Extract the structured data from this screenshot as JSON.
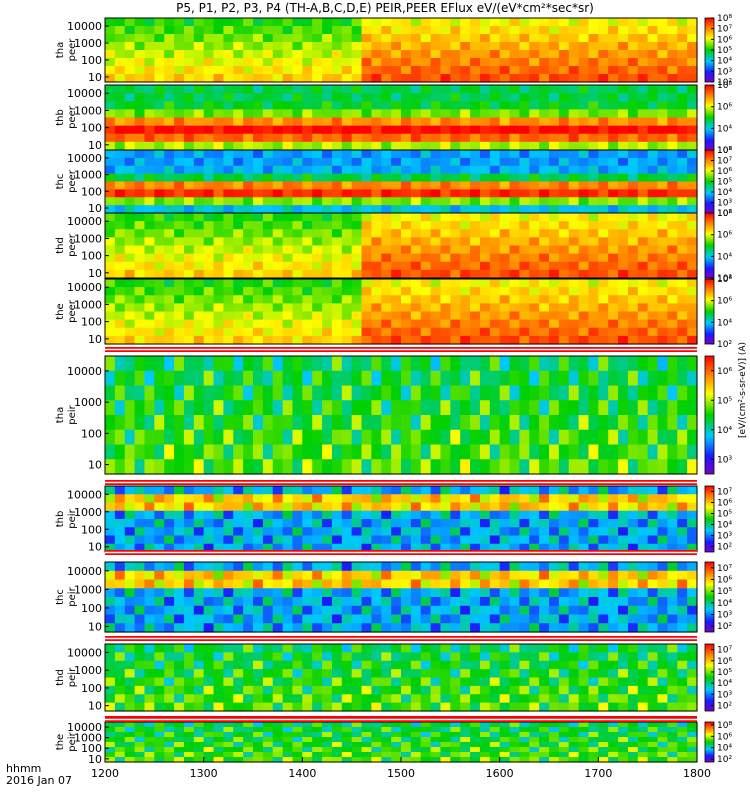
{
  "title": "P5, P1, P2, P3, P4 (TH-A,B,C,D,E) PEIR,PEER EFlux eV/(eV*cm²*sec*sr)",
  "colorbar_title_peer": "[eV/(cm²-s-sr-eV)] (A)",
  "colorbar_title_peir": "[eV/(cm²-s-sr-eV)]",
  "xaxis_label_line1": "hhmm",
  "xaxis_label_line2": "2016 Jan 07",
  "chart_data": {
    "type": "heatmap",
    "title": "P5, P1, P2, P3, P4 (TH-A,B,C,D,E) PEIR,PEER EFlux eV/(eV*cm²*sec*sr)",
    "x_ticks": [
      "1200",
      "1300",
      "1400",
      "1500",
      "1600",
      "1700",
      "1800"
    ],
    "x_range": [
      "1200",
      "1800"
    ],
    "y_scale": "log",
    "y_ticks": [
      "10",
      "100",
      "1000",
      "10000"
    ],
    "y_range": [
      5,
      30000
    ],
    "panels": [
      {
        "probe": "tha",
        "product": "peer",
        "label_line1": "tha",
        "label_line2": "peer",
        "cb_ticks": [
          "10²",
          "10³",
          "10⁴",
          "10⁵",
          "10⁶",
          "10⁷",
          "10⁸"
        ],
        "cb_range": [
          2,
          8
        ],
        "flag_bar": false
      },
      {
        "probe": "thb",
        "product": "peer",
        "label_line1": "thb",
        "label_line2": "peer",
        "cb_ticks": [
          "10²",
          "10⁴",
          "10⁶",
          "10⁸"
        ],
        "cb_range": [
          2,
          8
        ],
        "flag_bar": false
      },
      {
        "probe": "thc",
        "product": "peer",
        "label_line1": "thc",
        "label_line2": "peer",
        "cb_ticks": [
          "10²",
          "10³",
          "10⁴",
          "10⁵",
          "10⁶",
          "10⁷",
          "10⁸"
        ],
        "cb_range": [
          2,
          8
        ],
        "flag_bar": false
      },
      {
        "probe": "thd",
        "product": "peer",
        "label_line1": "thd",
        "label_line2": "peer",
        "cb_ticks": [
          "10²",
          "10⁴",
          "10⁶",
          "10⁸"
        ],
        "cb_range": [
          2,
          8
        ],
        "flag_bar": false
      },
      {
        "probe": "the",
        "product": "peer",
        "label_line1": "the",
        "label_line2": "peer",
        "cb_ticks": [
          "10²",
          "10⁴",
          "10⁶",
          "10⁸"
        ],
        "cb_range": [
          2,
          8
        ],
        "flag_bar": true
      },
      {
        "probe": "tha",
        "product": "peir",
        "label_line1": "tha",
        "label_line2": "peir",
        "cb_ticks": [
          "10³",
          "10⁴",
          "10⁵",
          "10⁶"
        ],
        "cb_range": [
          2.5,
          6.5
        ],
        "flag_bar": true
      },
      {
        "probe": "thb",
        "product": "peir",
        "label_line1": "thb",
        "label_line2": "peir",
        "cb_ticks": [
          "10²",
          "10³",
          "10⁴",
          "10⁵",
          "10⁶",
          "10⁷"
        ],
        "cb_range": [
          1.5,
          7.5
        ],
        "flag_bar": true
      },
      {
        "probe": "thc",
        "product": "peir",
        "label_line1": "thc",
        "label_line2": "peir",
        "cb_ticks": [
          "10²",
          "10³",
          "10⁴",
          "10⁵",
          "10⁶",
          "10⁷"
        ],
        "cb_range": [
          1.5,
          7.5
        ],
        "flag_bar": true
      },
      {
        "probe": "thd",
        "product": "peir",
        "label_line1": "thd",
        "label_line2": "peir",
        "cb_ticks": [
          "10²",
          "10³",
          "10⁴",
          "10⁵",
          "10⁶",
          "10⁷"
        ],
        "cb_range": [
          1.5,
          7.5
        ],
        "flag_bar": true
      },
      {
        "probe": "the",
        "product": "peir",
        "label_line1": "the",
        "label_line2": "peir",
        "cb_ticks": [
          "10²",
          "10⁴",
          "10⁶",
          "10⁸"
        ],
        "cb_range": [
          1.5,
          8.5
        ],
        "flag_bar": true
      }
    ],
    "colormap": "rainbow (purple-blue-cyan-green-yellow-red)",
    "colors": {
      "low": "#7b00c8",
      "mid": "#00d000",
      "high": "#ff0000",
      "flag_red": "#ff0000",
      "flag_yellow": "#ffff00"
    }
  }
}
